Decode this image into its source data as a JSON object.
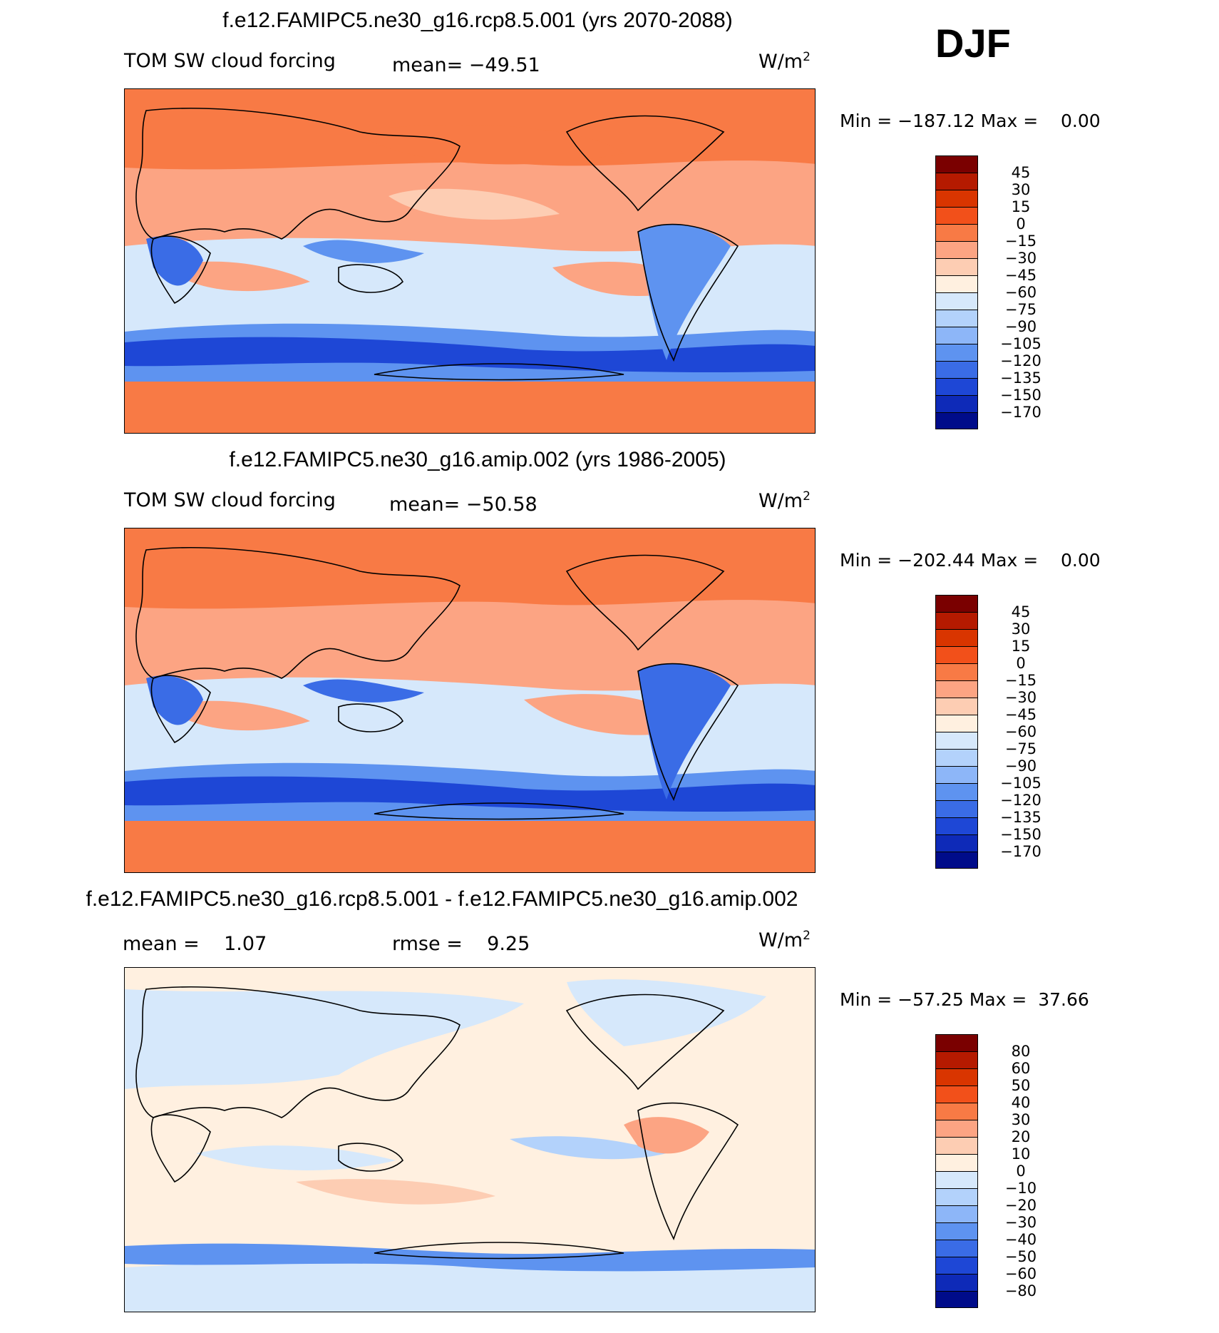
{
  "season": "DJF",
  "panels": [
    {
      "title": "f.e12.FAMIPC5.ne30_g16.rcp8.5.001 (yrs 2070-2088)",
      "field": "TOM SW cloud forcing",
      "stats": [
        {
          "label": "mean=",
          "value": "−49.51"
        }
      ],
      "units": "W/m",
      "units_sup": "2",
      "min_label": "Min =",
      "min_value": "−187.12",
      "max_label": "Max =",
      "max_value": "0.00",
      "colorbar": {
        "labels": [
          "45",
          "30",
          "15",
          "0",
          "−15",
          "−30",
          "−45",
          "−60",
          "−75",
          "−90",
          "−105",
          "−120",
          "−135",
          "−150",
          "−170"
        ],
        "colors": [
          "#7a0000",
          "#b51a00",
          "#d93500",
          "#f2501a",
          "#f87a45",
          "#fca483",
          "#fdcdb3",
          "#fff0e0",
          "#d6e8fb",
          "#b3d2fb",
          "#8db6f8",
          "#5e93f0",
          "#3a6ce6",
          "#1e47d6",
          "#0e2ab8",
          "#000c8a"
        ]
      }
    },
    {
      "title": "f.e12.FAMIPC5.ne30_g16.amip.002 (yrs 1986-2005)",
      "field": "TOM SW cloud forcing",
      "stats": [
        {
          "label": "mean=",
          "value": "−50.58"
        }
      ],
      "units": "W/m",
      "units_sup": "2",
      "min_label": "Min =",
      "min_value": "−202.44",
      "max_label": "Max =",
      "max_value": "0.00",
      "colorbar": {
        "labels": [
          "45",
          "30",
          "15",
          "0",
          "−15",
          "−30",
          "−45",
          "−60",
          "−75",
          "−90",
          "−105",
          "−120",
          "−135",
          "−150",
          "−170"
        ],
        "colors": [
          "#7a0000",
          "#b51a00",
          "#d93500",
          "#f2501a",
          "#f87a45",
          "#fca483",
          "#fdcdb3",
          "#fff0e0",
          "#d6e8fb",
          "#b3d2fb",
          "#8db6f8",
          "#5e93f0",
          "#3a6ce6",
          "#1e47d6",
          "#0e2ab8",
          "#000c8a"
        ]
      }
    },
    {
      "title": "f.e12.FAMIPC5.ne30_g16.rcp8.5.001 - f.e12.FAMIPC5.ne30_g16.amip.002",
      "field": "",
      "stats": [
        {
          "label": "mean =",
          "value": "1.07"
        },
        {
          "label": "rmse =",
          "value": "9.25"
        }
      ],
      "units": "W/m",
      "units_sup": "2",
      "min_label": "Min =",
      "min_value": "−57.25",
      "max_label": "Max =",
      "max_value": "37.66",
      "colorbar": {
        "labels": [
          "80",
          "60",
          "50",
          "40",
          "30",
          "20",
          "10",
          "0",
          "−10",
          "−20",
          "−30",
          "−40",
          "−50",
          "−60",
          "−80"
        ],
        "colors": [
          "#7a0000",
          "#b51a00",
          "#d93500",
          "#f2501a",
          "#f87a45",
          "#fca483",
          "#fdcdb3",
          "#fff0e0",
          "#d6e8fb",
          "#b3d2fb",
          "#8db6f8",
          "#5e93f0",
          "#3a6ce6",
          "#1e47d6",
          "#0e2ab8",
          "#000c8a"
        ]
      }
    }
  ]
}
